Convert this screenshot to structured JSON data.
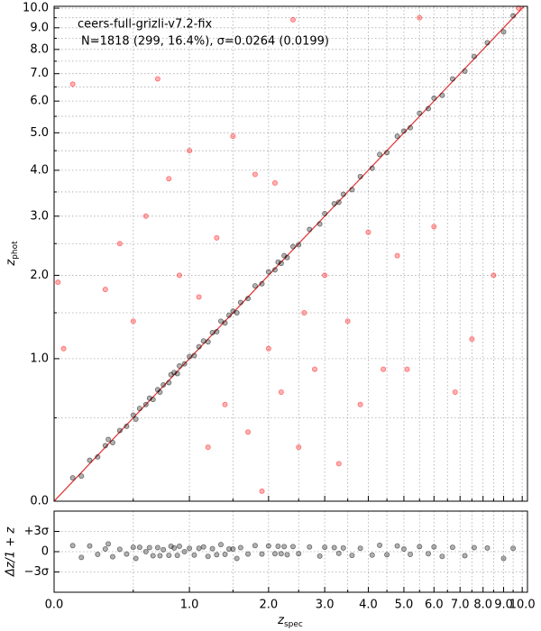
{
  "chart_data": [
    {
      "type": "scatter",
      "scale": "log1p",
      "annotations": [
        "ceers-full-grizli-v7.2-fix",
        "N=1818 (299, 16.4%), σ=0.0264 (0.0199)"
      ],
      "ylabel": {
        "base": "z",
        "sub": "phot"
      },
      "xlim": [
        0,
        10.3
      ],
      "ylim": [
        0,
        10.1
      ],
      "xticks": [
        0,
        1,
        2,
        3,
        4,
        5,
        6,
        7,
        8,
        9,
        10
      ],
      "xtick_labels": false,
      "xminorticks": [
        0.5,
        1.5,
        2.5,
        3.5,
        4.5,
        5.5,
        6.5,
        7.5,
        8.5,
        9.5
      ],
      "yticks": [
        {
          "value": 0,
          "label": "0.0"
        },
        {
          "value": 1,
          "label": "1.0"
        },
        {
          "value": 2,
          "label": "2.0"
        },
        {
          "value": 3,
          "label": "3.0"
        },
        {
          "value": 4,
          "label": "4.0"
        },
        {
          "value": 5,
          "label": "5.0"
        },
        {
          "value": 6,
          "label": "6.0"
        },
        {
          "value": 7,
          "label": "7.0"
        },
        {
          "value": 8,
          "label": "8.0"
        },
        {
          "value": 9,
          "label": "9.0"
        },
        {
          "value": 10,
          "label": "10.0"
        }
      ],
      "yminorticks": [
        0.5,
        1.5,
        2.5,
        3.5,
        4.5,
        5.5,
        6.5,
        7.5,
        8.5,
        9.5
      ],
      "grid": true,
      "identity_line_color": "#e04040",
      "series": [
        {
          "color": "#000000",
          "alpha": 0.3,
          "x": [
            0.1,
            0.15,
            0.2,
            0.25,
            0.3,
            0.32,
            0.35,
            0.4,
            0.45,
            0.5,
            0.52,
            0.55,
            0.6,
            0.63,
            0.66,
            0.7,
            0.72,
            0.75,
            0.8,
            0.82,
            0.85,
            0.88,
            0.9,
            0.95,
            1.0,
            1.05,
            1.1,
            1.15,
            1.2,
            1.25,
            1.3,
            1.35,
            1.4,
            1.45,
            1.5,
            1.55,
            1.6,
            1.7,
            1.8,
            1.9,
            2.0,
            2.1,
            2.15,
            2.2,
            2.25,
            2.3,
            2.4,
            2.5,
            2.7,
            2.9,
            3.0,
            3.2,
            3.3,
            3.4,
            3.6,
            3.8,
            4.1,
            4.3,
            4.5,
            4.8,
            5.0,
            5.2,
            5.5,
            5.8,
            6.0,
            6.3,
            6.7,
            7.2,
            7.6,
            8.2,
            9.0,
            9.5
          ],
          "values": [
            0.12,
            0.13,
            0.22,
            0.24,
            0.31,
            0.35,
            0.33,
            0.41,
            0.44,
            0.52,
            0.49,
            0.57,
            0.6,
            0.65,
            0.64,
            0.72,
            0.7,
            0.76,
            0.78,
            0.85,
            0.87,
            0.86,
            0.93,
            0.95,
            1.02,
            1.03,
            1.12,
            1.18,
            1.17,
            1.27,
            1.28,
            1.4,
            1.38,
            1.47,
            1.52,
            1.5,
            1.63,
            1.68,
            1.85,
            1.88,
            2.05,
            2.08,
            2.2,
            2.18,
            2.3,
            2.27,
            2.45,
            2.48,
            2.75,
            2.85,
            3.05,
            3.25,
            3.28,
            3.45,
            3.55,
            3.85,
            4.05,
            4.4,
            4.45,
            4.9,
            5.05,
            5.15,
            5.6,
            5.75,
            6.1,
            6.2,
            6.8,
            7.1,
            7.7,
            8.3,
            8.8,
            9.6
          ]
        },
        {
          "color": "#ff0000",
          "alpha": 0.3,
          "x": [
            0.02,
            0.05,
            0.1,
            0.3,
            0.4,
            0.5,
            0.6,
            0.7,
            0.8,
            0.9,
            1.0,
            1.1,
            1.2,
            1.3,
            1.4,
            1.5,
            1.7,
            1.8,
            1.9,
            2.0,
            2.1,
            2.2,
            2.4,
            2.5,
            2.6,
            2.8,
            3.0,
            3.3,
            3.5,
            3.8,
            4.0,
            4.4,
            4.8,
            5.1,
            5.5,
            6.0,
            6.8,
            7.5,
            8.5,
            9.8
          ],
          "values": [
            1.9,
            1.1,
            6.6,
            1.8,
            2.5,
            1.4,
            3.0,
            6.8,
            3.8,
            2.0,
            4.5,
            1.7,
            0.3,
            2.6,
            0.6,
            4.9,
            0.4,
            3.9,
            0.05,
            1.1,
            3.7,
            0.7,
            9.4,
            0.3,
            1.5,
            0.9,
            2.0,
            0.2,
            1.4,
            0.6,
            2.7,
            0.9,
            2.3,
            0.9,
            9.5,
            2.8,
            0.7,
            1.2,
            2.0,
            10.0
          ]
        }
      ]
    },
    {
      "type": "scatter",
      "scale": "log1p",
      "xlabel": {
        "base": "z",
        "sub": "spec"
      },
      "ylabel": "Δz/1 + z",
      "xlim": [
        0,
        10.3
      ],
      "ylim": [
        -0.12,
        0.12
      ],
      "xticks": [
        {
          "value": 0,
          "label": "0.0"
        },
        {
          "value": 1,
          "label": "1.0"
        },
        {
          "value": 2,
          "label": "2.0"
        },
        {
          "value": 3,
          "label": "3.0"
        },
        {
          "value": 4,
          "label": "4.0"
        },
        {
          "value": 5,
          "label": "5.0"
        },
        {
          "value": 6,
          "label": "6.0"
        },
        {
          "value": 7,
          "label": "7.0"
        },
        {
          "value": 8,
          "label": "8.0"
        },
        {
          "value": 9,
          "label": "9.0"
        },
        {
          "value": 10,
          "label": "10.0"
        }
      ],
      "xtick_labels": true,
      "xminorticks": [
        0.5,
        1.5,
        2.5,
        3.5,
        4.5,
        5.5,
        6.5,
        7.5,
        8.5,
        9.5
      ],
      "yticks": [
        {
          "value": -0.06,
          "label": "−3σ"
        },
        0,
        {
          "value": 0.06,
          "label": "+3σ"
        }
      ],
      "grid": true,
      "series": [
        {
          "color": "#000000",
          "alpha": 0.3,
          "x": [
            0.1,
            0.15,
            0.2,
            0.25,
            0.3,
            0.32,
            0.35,
            0.4,
            0.45,
            0.5,
            0.52,
            0.55,
            0.6,
            0.63,
            0.66,
            0.7,
            0.72,
            0.75,
            0.8,
            0.82,
            0.85,
            0.88,
            0.9,
            0.95,
            1.0,
            1.05,
            1.1,
            1.15,
            1.2,
            1.25,
            1.3,
            1.35,
            1.4,
            1.45,
            1.5,
            1.55,
            1.6,
            1.7,
            1.8,
            1.9,
            2.0,
            2.1,
            2.15,
            2.2,
            2.25,
            2.3,
            2.4,
            2.5,
            2.7,
            2.9,
            3.0,
            3.2,
            3.3,
            3.4,
            3.6,
            3.8,
            4.1,
            4.3,
            4.5,
            4.8,
            5.0,
            5.2,
            5.5,
            5.8,
            6.0,
            6.3,
            6.7,
            7.2,
            7.6,
            8.2,
            9.0,
            9.5
          ],
          "values": [
            0.018,
            -0.017,
            0.017,
            -0.008,
            0.008,
            0.023,
            -0.015,
            0.007,
            -0.007,
            0.013,
            -0.02,
            0.013,
            0,
            0.012,
            -0.012,
            0.012,
            -0.012,
            0.006,
            -0.011,
            0.016,
            0.011,
            -0.011,
            0.016,
            0,
            0.01,
            -0.01,
            0.01,
            0.014,
            -0.014,
            0.009,
            -0.009,
            0.021,
            -0.008,
            0.008,
            0.008,
            -0.02,
            0.012,
            -0.007,
            0.018,
            -0.007,
            0.017,
            -0.006,
            0.016,
            -0.006,
            0.015,
            -0.009,
            0.015,
            -0.006,
            0.014,
            -0.013,
            0.013,
            0.012,
            -0.005,
            0.011,
            -0.011,
            0.01,
            -0.01,
            0.019,
            -0.009,
            0.017,
            0.008,
            -0.008,
            0.015,
            -0.006,
            0.014,
            -0.014,
            0.013,
            -0.012,
            0.012,
            0.011,
            -0.02,
            0.01
          ]
        }
      ]
    }
  ]
}
